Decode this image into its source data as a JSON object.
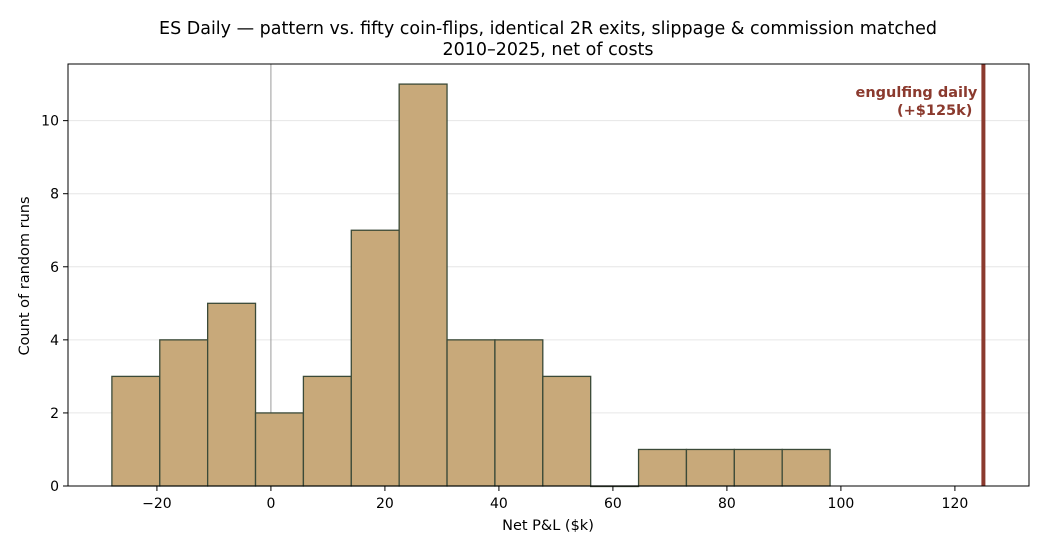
{
  "chart_data": {
    "type": "bar",
    "title": "ES Daily — pattern vs. fifty coin-flips, identical 2R exits, slippage & commission matched",
    "subtitle": "2010–2025, net of costs",
    "xlabel": "Net P&L ($k)",
    "ylabel": "Count of random runs",
    "xlim": [
      -35.6,
      133.0
    ],
    "ylim": [
      0,
      11.55
    ],
    "x_ticks": [
      -20,
      0,
      20,
      40,
      60,
      80,
      100,
      120
    ],
    "x_tick_labels": [
      "−20",
      "0",
      "20",
      "40",
      "60",
      "80",
      "100",
      "120"
    ],
    "y_ticks": [
      0,
      2,
      4,
      6,
      8,
      10
    ],
    "y_tick_labels": [
      "0",
      "2",
      "4",
      "6",
      "8",
      "10"
    ],
    "grid": "y",
    "bins": [
      {
        "x0": -27.9,
        "x1": -19.5,
        "count": 3
      },
      {
        "x0": -19.5,
        "x1": -11.1,
        "count": 4
      },
      {
        "x0": -11.1,
        "x1": -2.7,
        "count": 5
      },
      {
        "x0": -2.7,
        "x1": 5.7,
        "count": 2
      },
      {
        "x0": 5.7,
        "x1": 14.1,
        "count": 3
      },
      {
        "x0": 14.1,
        "x1": 22.5,
        "count": 7
      },
      {
        "x0": 22.5,
        "x1": 30.9,
        "count": 11
      },
      {
        "x0": 30.9,
        "x1": 39.3,
        "count": 4
      },
      {
        "x0": 39.3,
        "x1": 47.7,
        "count": 4
      },
      {
        "x0": 47.7,
        "x1": 56.1,
        "count": 3
      },
      {
        "x0": 56.1,
        "x1": 64.5,
        "count": 0
      },
      {
        "x0": 64.5,
        "x1": 72.9,
        "count": 1
      },
      {
        "x0": 72.9,
        "x1": 81.3,
        "count": 1
      },
      {
        "x0": 81.3,
        "x1": 89.7,
        "count": 1
      },
      {
        "x0": 89.7,
        "x1": 98.1,
        "count": 1
      }
    ],
    "zero_line": 0,
    "marker": {
      "x": 125,
      "label_line1": "engulfing daily",
      "label_line2": "(+$125k)",
      "color": "#8b3a2e"
    },
    "colors": {
      "bar_fill": "#c8a97a",
      "bar_edge": "#3b4a38",
      "grid": "#e6e6e6",
      "zero_line": "#9a9a9a"
    }
  }
}
